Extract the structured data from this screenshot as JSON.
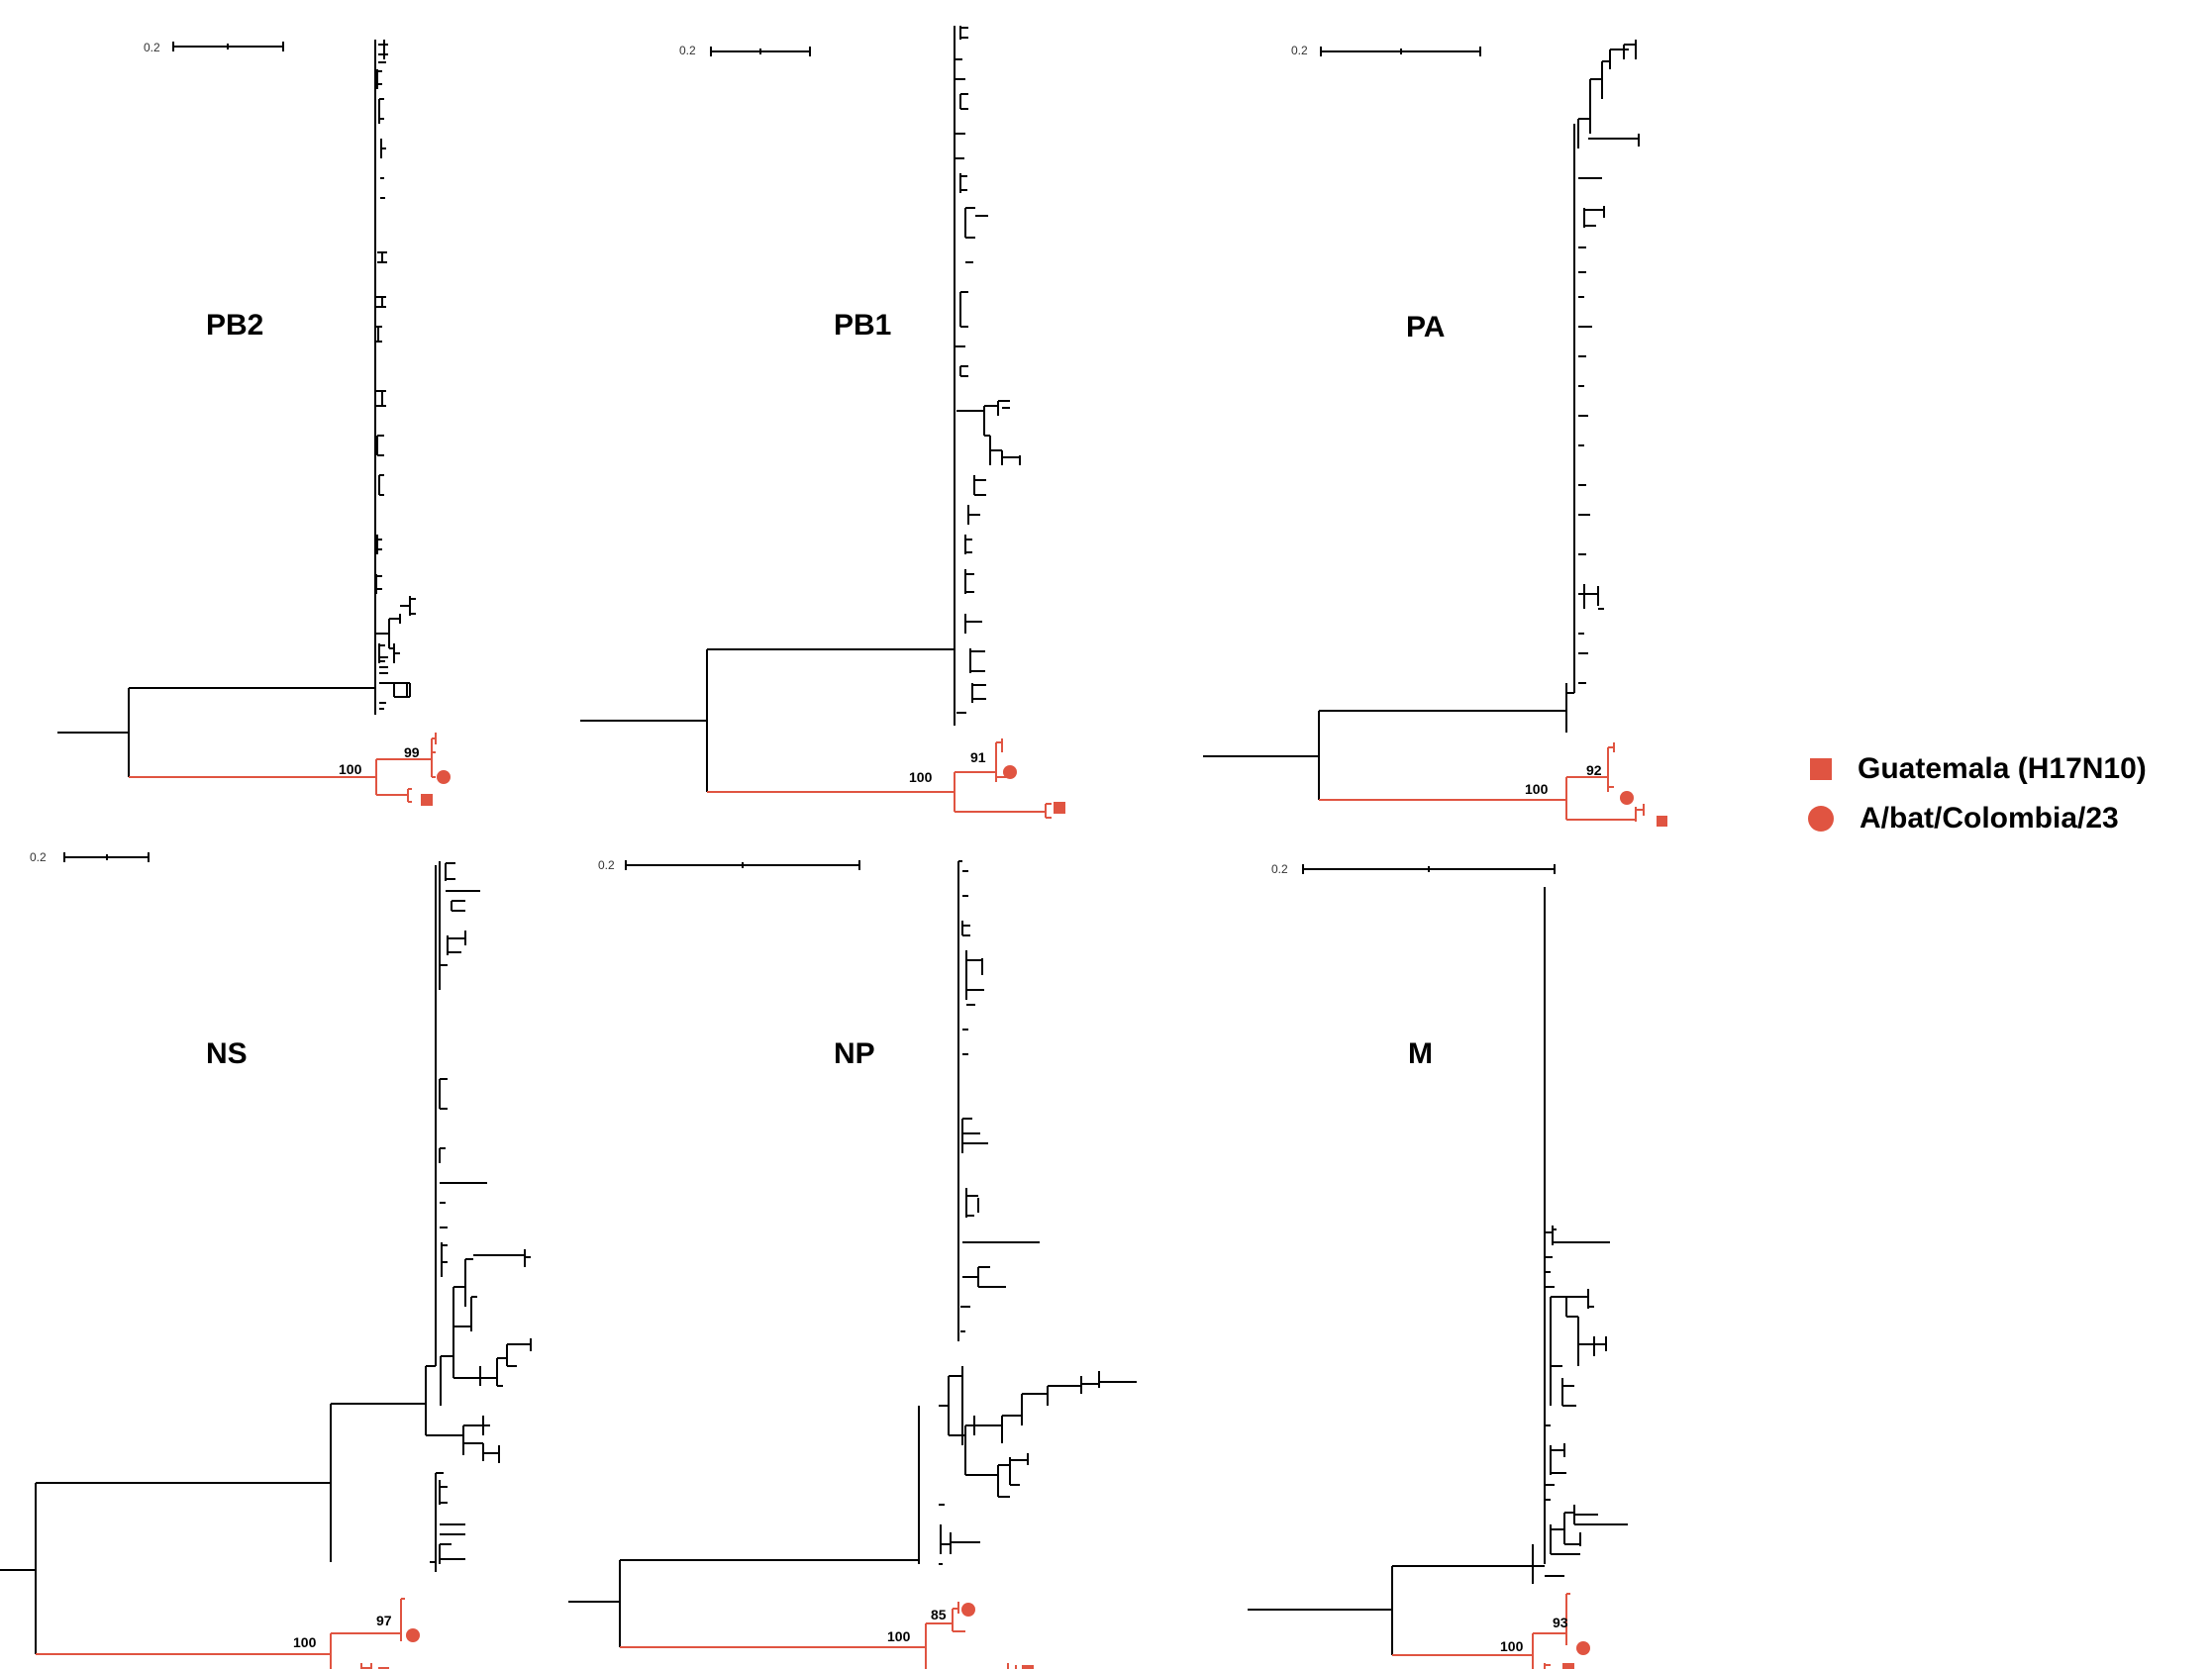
{
  "panels": [
    {
      "id": "pb2",
      "title": "PB2",
      "scale_label": "0.2",
      "outgroup_support": "100",
      "inner_support": "99"
    },
    {
      "id": "pb1",
      "title": "PB1",
      "scale_label": "0.2",
      "outgroup_support": "100",
      "inner_support": "91"
    },
    {
      "id": "pa",
      "title": "PA",
      "scale_label": "0.2",
      "outgroup_support": "100",
      "inner_support": "92"
    },
    {
      "id": "ns",
      "title": "NS",
      "scale_label": "0.2",
      "outgroup_support": "100",
      "inner_support": "97"
    },
    {
      "id": "np",
      "title": "NP",
      "scale_label": "0.2",
      "outgroup_support": "100",
      "inner_support": "85"
    },
    {
      "id": "m",
      "title": "M",
      "scale_label": "0.2",
      "outgroup_support": "100",
      "inner_support": "93"
    }
  ],
  "legend": {
    "guatemala": {
      "label": "Guatemala (H17N10)",
      "shape": "square"
    },
    "colombia": {
      "label": "A/bat/Colombia/23",
      "shape": "circle"
    }
  },
  "colors": {
    "highlight": "#e05441",
    "tree": "#000000"
  }
}
